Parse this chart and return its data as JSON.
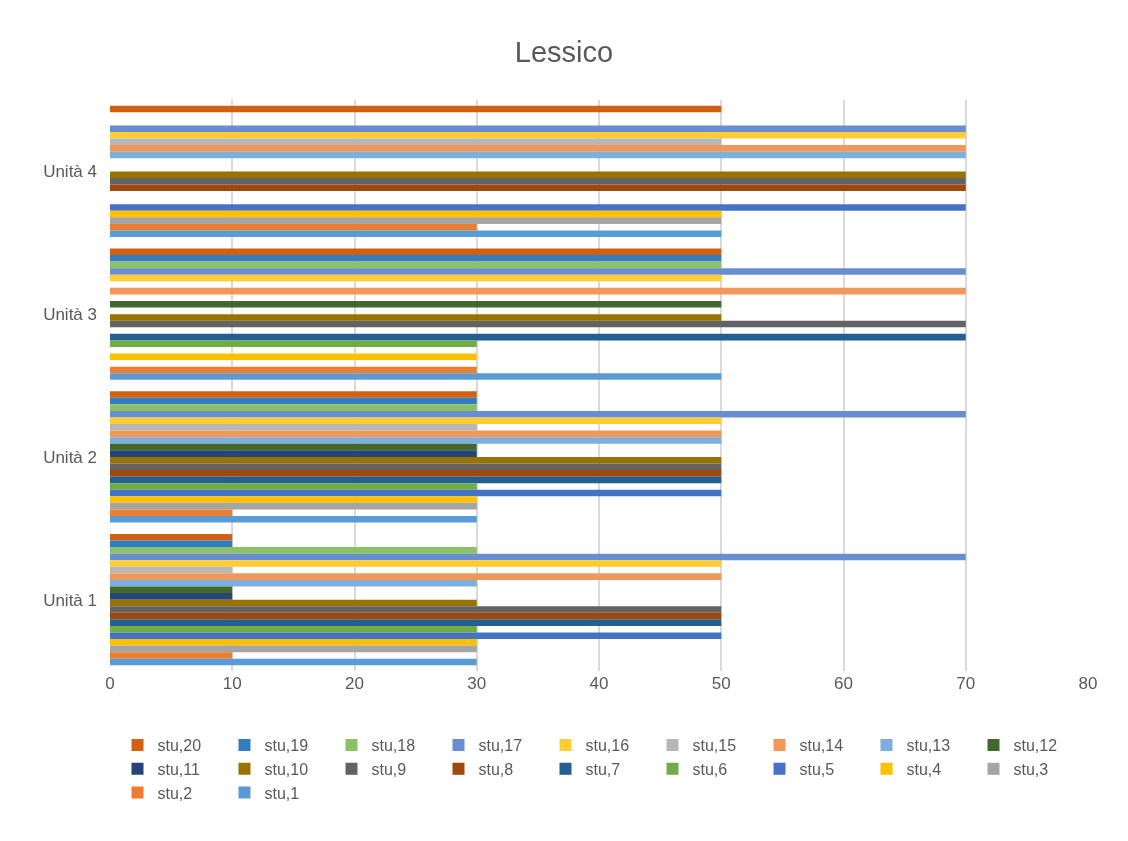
{
  "chart_data": {
    "type": "bar",
    "orientation": "horizontal",
    "title": "Lessico",
    "categories": [
      "Unità 4",
      "Unità 3",
      "Unità 2",
      "Unità 1"
    ],
    "series": [
      {
        "name": "stu,1",
        "color": "#5b9bd5",
        "values": [
          50,
          50,
          30,
          30
        ]
      },
      {
        "name": "stu,2",
        "color": "#ed7d31",
        "values": [
          30,
          30,
          10,
          10
        ]
      },
      {
        "name": "stu,3",
        "color": "#a5a5a5",
        "values": [
          50,
          0,
          30,
          30
        ]
      },
      {
        "name": "stu,4",
        "color": "#ffc000",
        "values": [
          50,
          30,
          30,
          30
        ]
      },
      {
        "name": "stu,5",
        "color": "#4472c4",
        "values": [
          70,
          0,
          50,
          50
        ]
      },
      {
        "name": "stu,6",
        "color": "#70ad47",
        "values": [
          0,
          30,
          30,
          30
        ]
      },
      {
        "name": "stu,7",
        "color": "#255e91",
        "values": [
          0,
          70,
          50,
          50
        ]
      },
      {
        "name": "stu,8",
        "color": "#9e480e",
        "values": [
          70,
          0,
          50,
          50
        ]
      },
      {
        "name": "stu,9",
        "color": "#636363",
        "values": [
          70,
          70,
          50,
          50
        ]
      },
      {
        "name": "stu,10",
        "color": "#997300",
        "values": [
          70,
          50,
          50,
          30
        ]
      },
      {
        "name": "stu,11",
        "color": "#264478",
        "values": [
          0,
          0,
          30,
          10
        ]
      },
      {
        "name": "stu,12",
        "color": "#43682b",
        "values": [
          0,
          50,
          30,
          10
        ]
      },
      {
        "name": "stu,13",
        "color": "#7cafdd",
        "values": [
          70,
          0,
          50,
          30
        ]
      },
      {
        "name": "stu,14",
        "color": "#f1975a",
        "values": [
          70,
          70,
          50,
          50
        ]
      },
      {
        "name": "stu,15",
        "color": "#b7b7b7",
        "values": [
          50,
          0,
          30,
          10
        ]
      },
      {
        "name": "stu,16",
        "color": "#ffcd33",
        "values": [
          70,
          50,
          50,
          50
        ]
      },
      {
        "name": "stu,17",
        "color": "#698ed0",
        "values": [
          70,
          70,
          70,
          70
        ]
      },
      {
        "name": "stu,18",
        "color": "#8cc168",
        "values": [
          0,
          50,
          30,
          30
        ]
      },
      {
        "name": "stu,19",
        "color": "#327dc2",
        "values": [
          0,
          50,
          30,
          10
        ]
      },
      {
        "name": "stu,20",
        "color": "#d26012",
        "values": [
          50,
          50,
          30,
          10
        ]
      }
    ],
    "xlim": [
      0,
      80
    ],
    "xticks": [
      0,
      10,
      20,
      30,
      40,
      50,
      60,
      70,
      80
    ],
    "grid": "x",
    "legend": "bottom"
  }
}
